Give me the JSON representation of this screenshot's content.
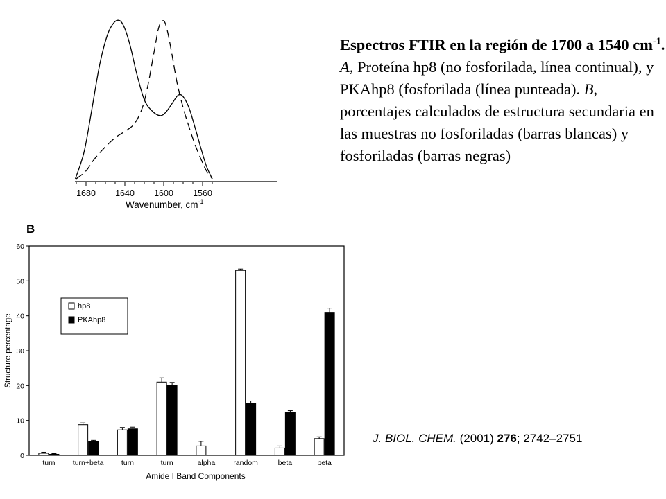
{
  "caption": {
    "title": "Espectros FTIR en la región de 1700 a 1540 cm",
    "superscript": "-1",
    "after_sup": ". ",
    "label_a": "A",
    "text_a": ", Proteína hp8 (no fosforilada, línea continual), y PKAhp8 (fosforilada (línea punteada). ",
    "label_b": "B",
    "text_b": ", porcentajes calculados de estructura secundaria en las muestras no fosforiladas (barras blancas) y fosforiladas (barras negras)"
  },
  "citation": {
    "journal": "J. BIOL. CHEM.",
    "year": " (2001) ",
    "volume": "276",
    "pages": "; 2742–2751"
  },
  "chart_data": [
    {
      "type": "line",
      "panel": "A",
      "xlabel": "Wavenumber,  cm",
      "xlabel_sup": "-1",
      "ylabel": "",
      "x_reversed": true,
      "xlim": [
        1700,
        1548
      ],
      "x_ticks": [
        1680,
        1640,
        1600,
        1560
      ],
      "series": [
        {
          "name": "hp8 (no fosforilada)",
          "style": "solid",
          "x": [
            1691,
            1682,
            1674,
            1666,
            1658,
            1651,
            1645,
            1640,
            1634,
            1628,
            1620,
            1612,
            1604,
            1598,
            1591,
            1585,
            1580,
            1574,
            1568,
            1562,
            1556,
            1550
          ],
          "y": [
            0.0,
            0.17,
            0.44,
            0.72,
            0.91,
            0.99,
            1.0,
            0.95,
            0.83,
            0.67,
            0.5,
            0.43,
            0.4,
            0.42,
            0.48,
            0.53,
            0.52,
            0.45,
            0.33,
            0.2,
            0.08,
            0.0
          ]
        },
        {
          "name": "PKAhp8 (fosforilada)",
          "style": "dashed",
          "x": [
            1690,
            1680,
            1672,
            1662,
            1650,
            1640,
            1630,
            1622,
            1616,
            1610,
            1605,
            1600,
            1596,
            1591,
            1586,
            1580,
            1574,
            1568,
            1562,
            1556,
            1550
          ],
          "y": [
            0.0,
            0.05,
            0.12,
            0.19,
            0.26,
            0.3,
            0.35,
            0.45,
            0.6,
            0.8,
            0.96,
            1.0,
            0.93,
            0.77,
            0.6,
            0.45,
            0.33,
            0.22,
            0.13,
            0.05,
            0.0
          ]
        }
      ]
    },
    {
      "type": "bar",
      "panel": "B",
      "title": "B",
      "xlabel": "Amide I Band Components",
      "ylabel": "Structure  percentage",
      "ylim": [
        0,
        60
      ],
      "y_ticks": [
        0,
        10,
        20,
        30,
        40,
        50,
        60
      ],
      "categories": [
        "turn",
        "turn+beta",
        "turn",
        "turn",
        "alpha",
        "random",
        "beta",
        "beta"
      ],
      "series": [
        {
          "name": "hp8",
          "color": "#ffffff",
          "values": [
            0.6,
            8.8,
            7.3,
            21.0,
            2.7,
            53.0,
            2.1,
            4.8
          ],
          "errors": [
            0.3,
            0.5,
            0.7,
            1.2,
            1.3,
            0.4,
            0.6,
            0.5
          ]
        },
        {
          "name": "PKAhp8",
          "color": "#000000",
          "values": [
            0.3,
            3.9,
            7.6,
            20.0,
            0.0,
            15.0,
            12.3,
            41.0
          ],
          "errors": [
            0.2,
            0.4,
            0.5,
            0.9,
            0.0,
            0.6,
            0.5,
            1.2
          ]
        }
      ],
      "legend_position": "top-left"
    }
  ]
}
